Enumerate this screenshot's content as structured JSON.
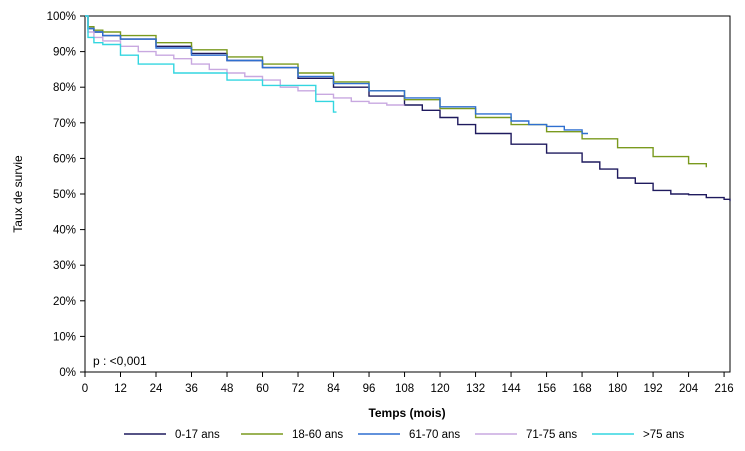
{
  "chart_data": {
    "type": "line",
    "step": true,
    "xlabel": "Temps (mois)",
    "ylabel": "Taux de survie",
    "xlim": [
      0,
      218
    ],
    "ylim": [
      0,
      100
    ],
    "x_ticks": [
      0,
      12,
      24,
      36,
      48,
      60,
      72,
      84,
      96,
      108,
      120,
      132,
      144,
      156,
      168,
      180,
      192,
      204,
      216
    ],
    "y_ticks": [
      0,
      10,
      20,
      30,
      40,
      50,
      60,
      70,
      80,
      90,
      100
    ],
    "y_tick_labels": [
      "0%",
      "10%",
      "20%",
      "30%",
      "40%",
      "50%",
      "60%",
      "70%",
      "80%",
      "90%",
      "100%"
    ],
    "grid": false,
    "legend_position": "bottom",
    "annotation": "p : <0,001",
    "series": [
      {
        "name": "0-17 ans",
        "color": "#1f1a5e",
        "x": [
          0,
          1,
          3,
          6,
          12,
          24,
          36,
          48,
          60,
          72,
          84,
          96,
          108,
          114,
          120,
          126,
          132,
          144,
          156,
          168,
          174,
          180,
          186,
          192,
          198,
          204,
          210,
          216,
          218
        ],
        "y": [
          100,
          96.5,
          95.5,
          94.5,
          93.5,
          91.5,
          89.5,
          87.5,
          85.5,
          82.5,
          80,
          77.5,
          75,
          73.5,
          71.5,
          69.5,
          67,
          64,
          61.5,
          59,
          57,
          54.5,
          53,
          51,
          50,
          49.8,
          49,
          48.5,
          48
        ]
      },
      {
        "name": "18-60 ans",
        "color": "#7a9a1e",
        "x": [
          0,
          1,
          3,
          6,
          12,
          24,
          36,
          48,
          60,
          72,
          84,
          96,
          108,
          120,
          132,
          144,
          156,
          168,
          180,
          192,
          204,
          210
        ],
        "y": [
          100,
          97,
          96,
          95.5,
          94.5,
          92.5,
          90.5,
          88.5,
          86.5,
          84,
          81.5,
          79,
          76.5,
          74,
          71.5,
          69.5,
          67.5,
          65.5,
          63,
          60.5,
          58.5,
          57.5
        ]
      },
      {
        "name": "61-70 ans",
        "color": "#2f6fd0",
        "x": [
          0,
          1,
          3,
          6,
          12,
          24,
          36,
          48,
          60,
          72,
          84,
          96,
          108,
          120,
          132,
          144,
          150,
          156,
          162,
          168,
          170
        ],
        "y": [
          100,
          96.5,
          95.5,
          94.5,
          93.5,
          91,
          89,
          87.5,
          85.5,
          83,
          81,
          79,
          77,
          74.5,
          72.5,
          70.5,
          69.5,
          69,
          68,
          67,
          67
        ]
      },
      {
        "name": "71-75 ans",
        "color": "#c8a8e0",
        "x": [
          0,
          1,
          3,
          6,
          12,
          18,
          24,
          30,
          36,
          42,
          48,
          54,
          60,
          66,
          72,
          78,
          84,
          90,
          96,
          102,
          108
        ],
        "y": [
          100,
          95.5,
          94,
          93,
          91.5,
          90,
          89,
          88,
          86.5,
          85,
          84,
          83,
          82,
          80,
          79,
          78,
          77,
          76,
          75.5,
          75,
          75
        ]
      },
      {
        "name": ">75 ans",
        "color": "#33d6e0",
        "x": [
          0,
          1,
          3,
          6,
          12,
          18,
          24,
          30,
          40,
          48,
          56,
          60,
          70,
          78,
          81,
          84,
          85
        ],
        "y": [
          100,
          94,
          92.5,
          92,
          89,
          86.5,
          86.5,
          84,
          84,
          82,
          82,
          80.5,
          80.5,
          76,
          76,
          73,
          73
        ]
      }
    ]
  }
}
